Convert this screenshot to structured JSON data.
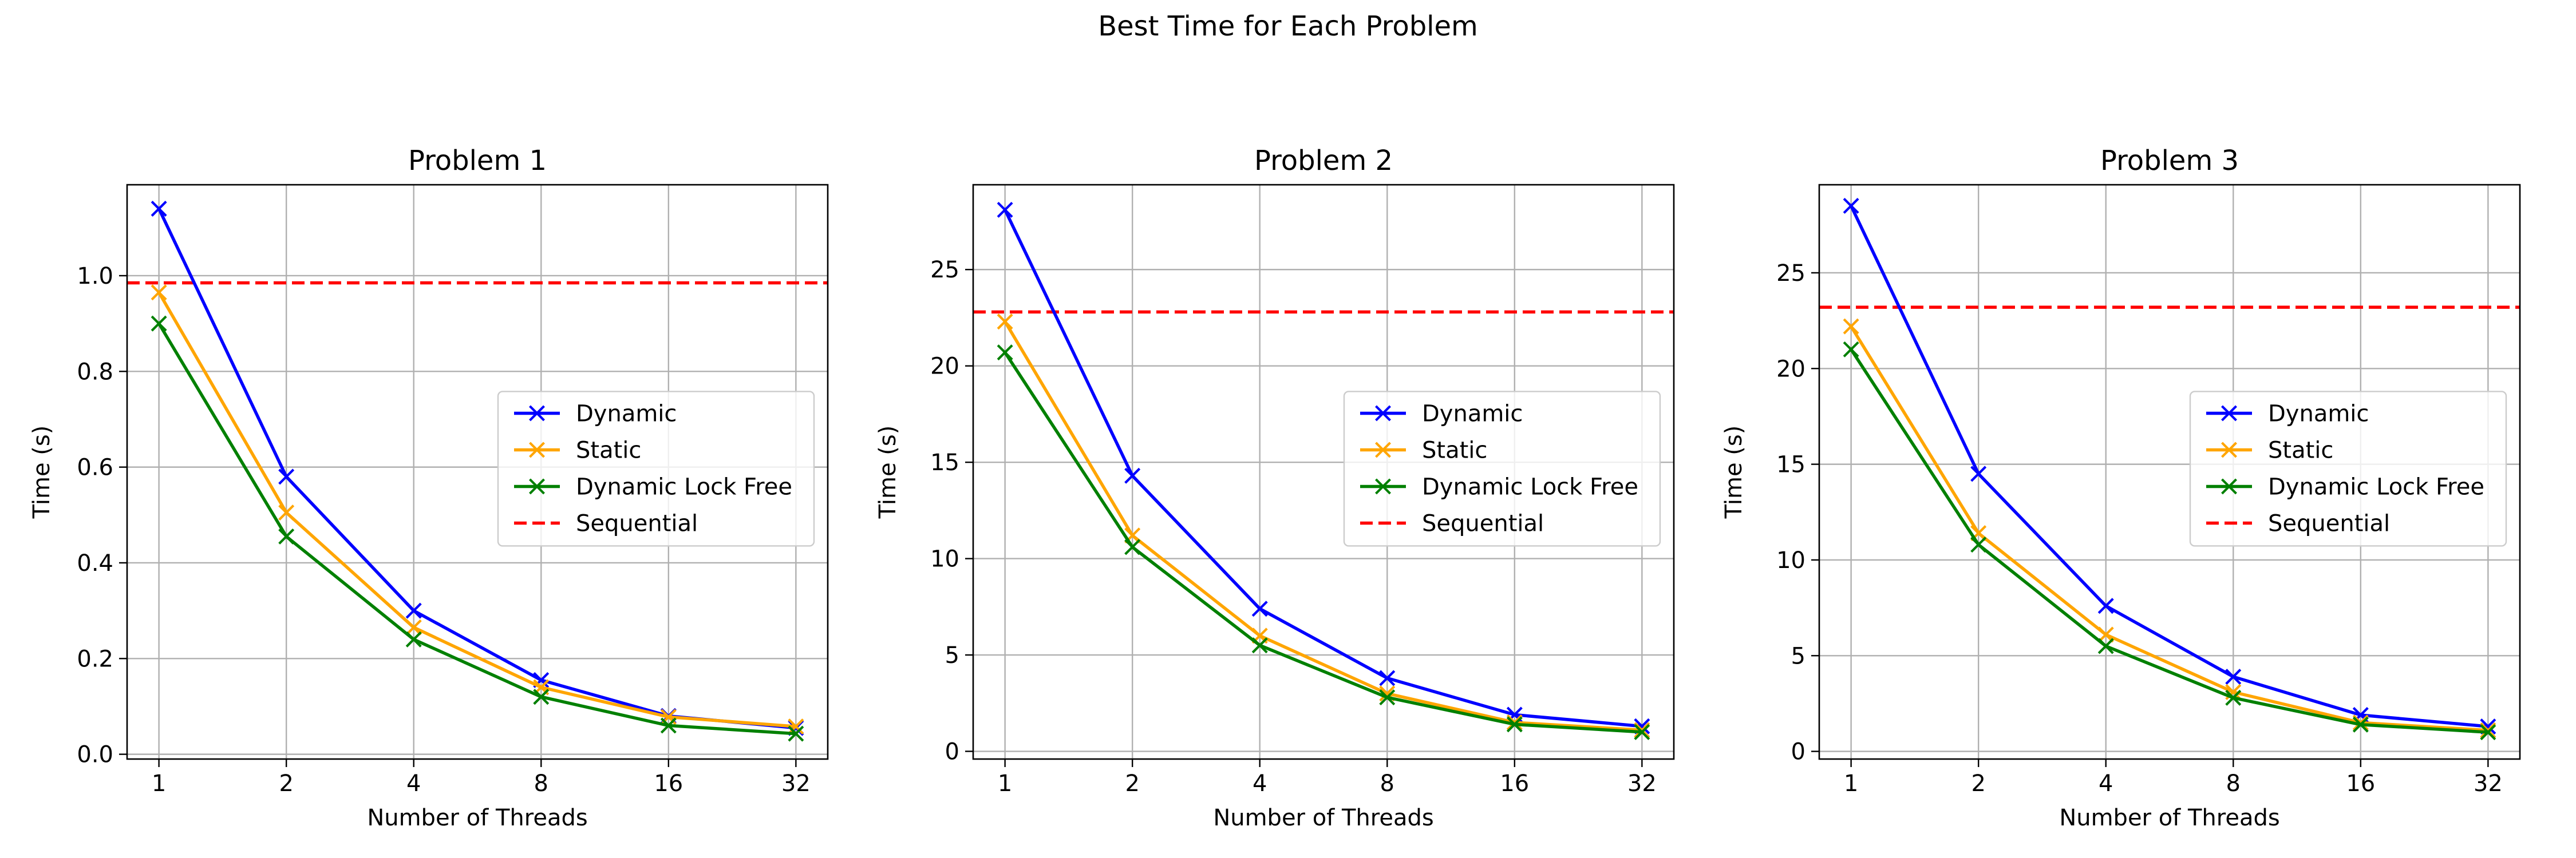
{
  "suptitle": "Best Time for Each Problem",
  "colors": {
    "dynamic": "#0000ff",
    "static": "#ffa500",
    "lockfree": "#008000",
    "sequential": "#ff0000",
    "grid": "#b0b0b0",
    "axes": "#000000",
    "legend_border": "#cccccc"
  },
  "chart_data": [
    {
      "type": "line",
      "title": "Problem 1",
      "xlabel": "Number of Threads",
      "ylabel": "Time (s)",
      "x": [
        1,
        2,
        4,
        8,
        16,
        32
      ],
      "x_scale": "log2",
      "ylim": [
        -0.01,
        1.19
      ],
      "yticks": [
        0.0,
        0.2,
        0.4,
        0.6,
        0.8,
        1.0
      ],
      "ytick_labels": [
        "0.0",
        "0.2",
        "0.4",
        "0.6",
        "0.8",
        "1.0"
      ],
      "grid": true,
      "legend_position": "center-right",
      "series": [
        {
          "name": "Dynamic",
          "key": "dynamic",
          "marker": "x",
          "values": [
            1.14,
            0.58,
            0.3,
            0.155,
            0.08,
            0.055
          ]
        },
        {
          "name": "Static",
          "key": "static",
          "marker": "x",
          "values": [
            0.965,
            0.505,
            0.265,
            0.14,
            0.078,
            0.058
          ]
        },
        {
          "name": "Dynamic Lock Free",
          "key": "lockfree",
          "marker": "x",
          "values": [
            0.9,
            0.455,
            0.24,
            0.12,
            0.06,
            0.043
          ]
        }
      ],
      "reference_lines": [
        {
          "name": "Sequential",
          "key": "sequential",
          "style": "dashed",
          "value": 0.985
        }
      ]
    },
    {
      "type": "line",
      "title": "Problem 2",
      "xlabel": "Number of Threads",
      "ylabel": "Time (s)",
      "x": [
        1,
        2,
        4,
        8,
        16,
        32
      ],
      "x_scale": "log2",
      "ylim": [
        -0.4,
        29.4
      ],
      "yticks": [
        0,
        5,
        10,
        15,
        20,
        25
      ],
      "ytick_labels": [
        "0",
        "5",
        "10",
        "15",
        "20",
        "25"
      ],
      "grid": true,
      "legend_position": "center-right",
      "series": [
        {
          "name": "Dynamic",
          "key": "dynamic",
          "marker": "x",
          "values": [
            28.1,
            14.3,
            7.4,
            3.8,
            1.9,
            1.3
          ]
        },
        {
          "name": "Static",
          "key": "static",
          "marker": "x",
          "values": [
            22.3,
            11.2,
            6.0,
            3.0,
            1.5,
            1.1
          ]
        },
        {
          "name": "Dynamic Lock Free",
          "key": "lockfree",
          "marker": "x",
          "values": [
            20.7,
            10.6,
            5.5,
            2.8,
            1.4,
            1.0
          ]
        }
      ],
      "reference_lines": [
        {
          "name": "Sequential",
          "key": "sequential",
          "style": "dashed",
          "value": 22.8
        }
      ]
    },
    {
      "type": "line",
      "title": "Problem 3",
      "xlabel": "Number of Threads",
      "ylabel": "Time (s)",
      "x": [
        1,
        2,
        4,
        8,
        16,
        32
      ],
      "x_scale": "log2",
      "ylim": [
        -0.4,
        29.6
      ],
      "yticks": [
        0,
        5,
        10,
        15,
        20,
        25
      ],
      "ytick_labels": [
        "0",
        "5",
        "10",
        "15",
        "20",
        "25"
      ],
      "grid": true,
      "legend_position": "center-right",
      "series": [
        {
          "name": "Dynamic",
          "key": "dynamic",
          "marker": "x",
          "values": [
            28.5,
            14.5,
            7.6,
            3.9,
            1.9,
            1.3
          ]
        },
        {
          "name": "Static",
          "key": "static",
          "marker": "x",
          "values": [
            22.2,
            11.4,
            6.1,
            3.1,
            1.5,
            1.1
          ]
        },
        {
          "name": "Dynamic Lock Free",
          "key": "lockfree",
          "marker": "x",
          "values": [
            21.0,
            10.8,
            5.5,
            2.8,
            1.4,
            1.0
          ]
        }
      ],
      "reference_lines": [
        {
          "name": "Sequential",
          "key": "sequential",
          "style": "dashed",
          "value": 23.2
        }
      ]
    }
  ]
}
